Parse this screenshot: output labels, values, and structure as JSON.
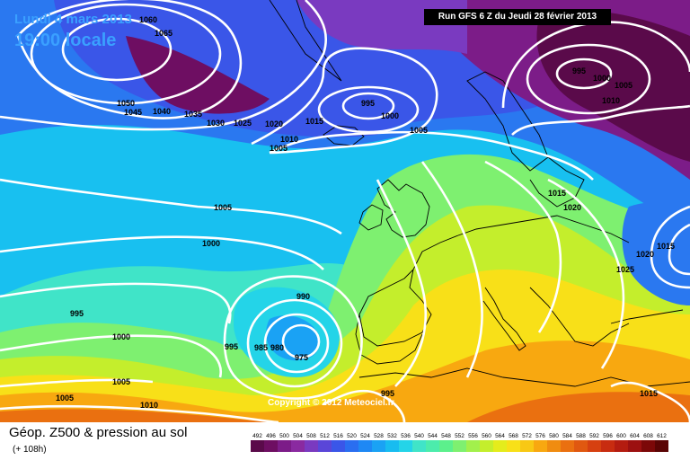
{
  "header": {
    "date": "Lundi 4 mars 2013",
    "time": "19:00 locale",
    "run": "Run GFS 6 Z du Jeudi 28 février 2013"
  },
  "footer": {
    "title": "Géop. Z500 & pression au sol",
    "subtitle": "(+ 108h)",
    "copyright": "Copyright © 2012 Meteociel.fr"
  },
  "legend": {
    "values": [
      "492",
      "496",
      "500",
      "504",
      "508",
      "512",
      "516",
      "520",
      "524",
      "528",
      "532",
      "536",
      "540",
      "544",
      "548",
      "552",
      "556",
      "560",
      "564",
      "568",
      "572",
      "576",
      "580",
      "584",
      "588",
      "592",
      "596",
      "600",
      "604",
      "608",
      "612"
    ],
    "colors": [
      "#5a0a4a",
      "#6e0e62",
      "#7c1c88",
      "#8a2aa0",
      "#7a3ac0",
      "#5a46d8",
      "#3a56e8",
      "#2a6ef0",
      "#1e88f4",
      "#1aa2f4",
      "#18bcf0",
      "#24d4e8",
      "#40e4c8",
      "#4cecac",
      "#5cf08c",
      "#7ef070",
      "#a2f04c",
      "#c4ee2c",
      "#e4ec1c",
      "#f8e018",
      "#f8c814",
      "#f8a810",
      "#f08c10",
      "#ea7010",
      "#e05810",
      "#d64010",
      "#c82c10",
      "#b41c10",
      "#9c1010",
      "#7c0808",
      "#5a0404"
    ]
  },
  "isobar_labels": [
    {
      "text": "1060"
    },
    {
      "text": "1065"
    },
    {
      "text": "1050"
    },
    {
      "text": "1045"
    },
    {
      "text": "1040"
    },
    {
      "text": "1035"
    },
    {
      "text": "1030"
    },
    {
      "text": "1025"
    },
    {
      "text": "1020"
    },
    {
      "text": "1015"
    },
    {
      "text": "1010"
    },
    {
      "text": "1005"
    },
    {
      "text": "995"
    },
    {
      "text": "1000"
    },
    {
      "text": "1005"
    },
    {
      "text": "995"
    },
    {
      "text": "1000"
    },
    {
      "text": "1005"
    },
    {
      "text": "1010"
    },
    {
      "text": "1005"
    },
    {
      "text": "1000"
    },
    {
      "text": "1015"
    },
    {
      "text": "1020"
    },
    {
      "text": "1015"
    },
    {
      "text": "1020"
    },
    {
      "text": "1025"
    },
    {
      "text": "995"
    },
    {
      "text": "1000"
    },
    {
      "text": "990"
    },
    {
      "text": "995"
    },
    {
      "text": "985"
    },
    {
      "text": "980"
    },
    {
      "text": "975"
    },
    {
      "text": "1005"
    },
    {
      "text": "1010"
    },
    {
      "text": "1005"
    },
    {
      "text": "995"
    },
    {
      "text": "1015"
    }
  ],
  "colors": {
    "banner_bg": "#000000",
    "date_text": "#3aa0ff",
    "isobar": "#ffffff",
    "coast": "#000000"
  }
}
